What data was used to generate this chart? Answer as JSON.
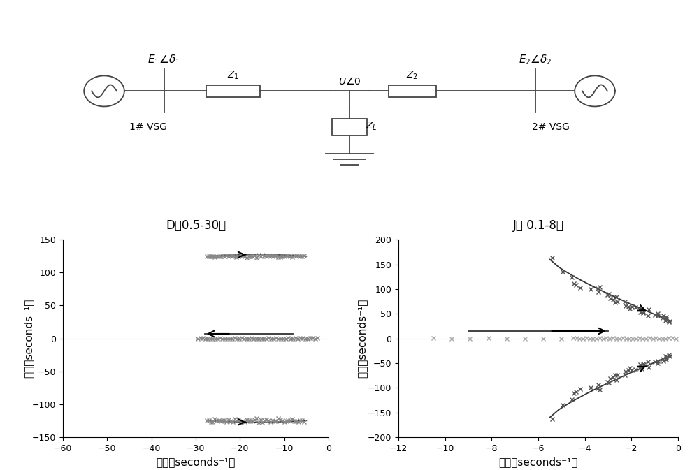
{
  "fig_width": 10.0,
  "fig_height": 6.73,
  "bg_color": "#ffffff",
  "left_title": "D（0.5-30）",
  "right_title": "J（ 0.1-8）",
  "left_xlim": [
    -60,
    0
  ],
  "left_ylim": [
    -150,
    150
  ],
  "left_xticks": [
    -60,
    -50,
    -40,
    -30,
    -20,
    -10,
    0
  ],
  "left_yticks": [
    -150,
    -100,
    -50,
    0,
    50,
    100,
    150
  ],
  "right_xlim": [
    -12,
    0
  ],
  "right_ylim": [
    -200,
    200
  ],
  "right_xticks": [
    -12,
    -10,
    -8,
    -6,
    -4,
    -2,
    0
  ],
  "right_yticks": [
    -200,
    -150,
    -100,
    -50,
    0,
    50,
    100,
    150,
    200
  ],
  "xlabel": "实轴（seconds⁻¹）",
  "ylabel": "虚轴（seconds⁻¹）",
  "marker_color_left": "#888888",
  "marker_color_right_dark": "#555555",
  "marker_color_right_light": "#aaaaaa",
  "curve_color": "#333333",
  "arrow_color": "#000000",
  "grid_color": "#cccccc"
}
